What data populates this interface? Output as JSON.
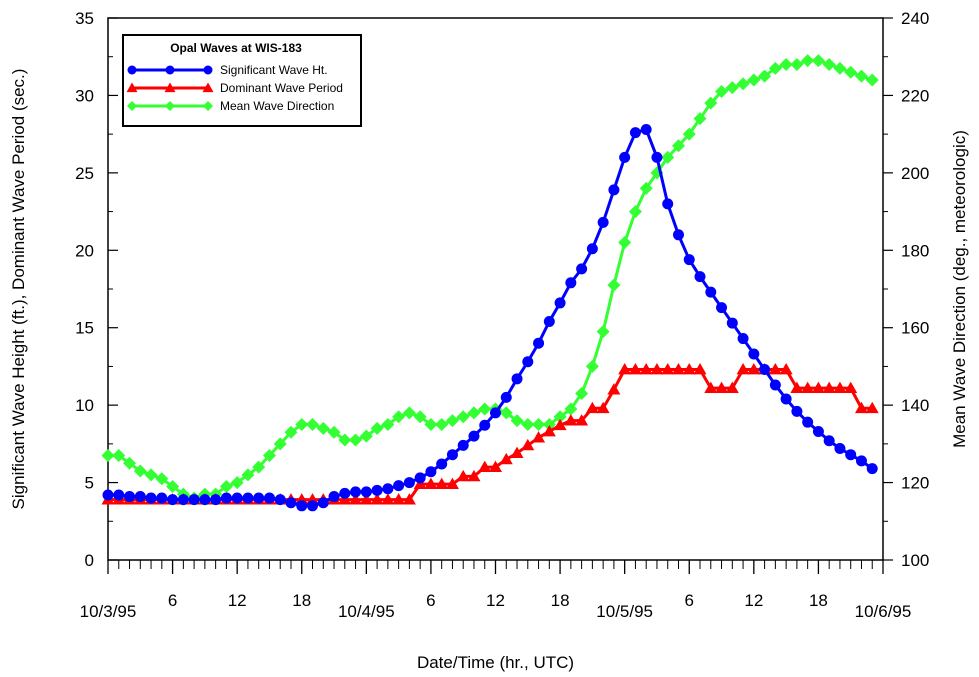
{
  "chart_data": {
    "type": "line",
    "title": "Opal Waves at WIS-183",
    "xlabel": "Date/Time (hr., UTC)",
    "ylabel_left": "Significant Wave Height (ft.), Dominant Wave Period (sec.)",
    "ylabel_right": "Mean Wave Direction (deg., meteorologic)",
    "x_unit": "hours since 10/3/95 00 UTC",
    "xlim": [
      0,
      72
    ],
    "ylim_left": [
      0,
      35
    ],
    "ylim_right": [
      100,
      240
    ],
    "y_ticks_left": [
      "0",
      "5",
      "10",
      "15",
      "20",
      "25",
      "30",
      "35"
    ],
    "y_ticks_right": [
      "100",
      "120",
      "140",
      "160",
      "180",
      "200",
      "220",
      "240"
    ],
    "x_hour_labels": [
      {
        "x": 6,
        "label": "6"
      },
      {
        "x": 12,
        "label": "12"
      },
      {
        "x": 18,
        "label": "18"
      },
      {
        "x": 30,
        "label": "6"
      },
      {
        "x": 36,
        "label": "12"
      },
      {
        "x": 42,
        "label": "18"
      },
      {
        "x": 54,
        "label": "6"
      },
      {
        "x": 60,
        "label": "12"
      },
      {
        "x": 66,
        "label": "18"
      }
    ],
    "x_date_labels": [
      {
        "x": 0,
        "label": "10/3/95"
      },
      {
        "x": 24,
        "label": "10/4/95"
      },
      {
        "x": 48,
        "label": "10/5/95"
      },
      {
        "x": 72,
        "label": "10/6/95"
      }
    ],
    "legend_position": "top-left",
    "grid": false,
    "series": [
      {
        "name": "Significant Wave Ht.",
        "axis": "left",
        "color": "#0000ff",
        "marker": "circle",
        "x": [
          0,
          1,
          2,
          3,
          4,
          5,
          6,
          7,
          8,
          9,
          10,
          11,
          12,
          13,
          14,
          15,
          16,
          17,
          18,
          19,
          20,
          21,
          22,
          23,
          24,
          25,
          26,
          27,
          28,
          29,
          30,
          31,
          32,
          33,
          34,
          35,
          36,
          37,
          38,
          39,
          40,
          41,
          42,
          43,
          44,
          45,
          46,
          47,
          48,
          49,
          50,
          51,
          52,
          53,
          54,
          55,
          56,
          57,
          58,
          59,
          60,
          61,
          62,
          63,
          64,
          65,
          66,
          67,
          68,
          69,
          70,
          71
        ],
        "values": [
          4.2,
          4.2,
          4.1,
          4.1,
          4.0,
          4.0,
          3.9,
          3.9,
          3.9,
          3.9,
          3.9,
          4.0,
          4.0,
          4.0,
          4.0,
          4.0,
          3.9,
          3.7,
          3.5,
          3.5,
          3.7,
          4.1,
          4.3,
          4.4,
          4.4,
          4.5,
          4.6,
          4.8,
          5.0,
          5.3,
          5.7,
          6.2,
          6.8,
          7.4,
          8.0,
          8.7,
          9.5,
          10.5,
          11.7,
          12.8,
          14.0,
          15.4,
          16.6,
          17.9,
          18.8,
          20.1,
          21.8,
          23.9,
          26.0,
          27.6,
          27.8,
          26.0,
          23.0,
          21.0,
          19.4,
          18.3,
          17.3,
          16.3,
          15.3,
          14.3,
          13.3,
          12.3,
          11.3,
          10.4,
          9.6,
          8.9,
          8.3,
          7.7,
          7.2,
          6.8,
          6.4,
          5.9
        ]
      },
      {
        "name": "Dominant Wave Period",
        "axis": "left",
        "color": "#ff0000",
        "marker": "triangle",
        "x": [
          0,
          1,
          2,
          3,
          4,
          5,
          6,
          7,
          8,
          9,
          10,
          11,
          12,
          13,
          14,
          15,
          16,
          17,
          18,
          19,
          20,
          21,
          22,
          23,
          24,
          25,
          26,
          27,
          28,
          29,
          30,
          31,
          32,
          33,
          34,
          35,
          36,
          37,
          38,
          39,
          40,
          41,
          42,
          43,
          44,
          45,
          46,
          47,
          48,
          49,
          50,
          51,
          52,
          53,
          54,
          55,
          56,
          57,
          58,
          59,
          60,
          61,
          62,
          63,
          64,
          65,
          66,
          67,
          68,
          69,
          70,
          71
        ],
        "values": [
          3.9,
          3.9,
          3.9,
          3.9,
          3.9,
          3.9,
          3.9,
          3.9,
          3.9,
          3.9,
          3.9,
          3.9,
          3.9,
          3.9,
          3.9,
          3.9,
          3.9,
          3.9,
          3.9,
          3.9,
          3.9,
          3.9,
          3.9,
          3.9,
          3.9,
          3.9,
          3.9,
          3.9,
          3.9,
          4.9,
          4.9,
          4.9,
          4.9,
          5.4,
          5.4,
          6.0,
          6.0,
          6.5,
          6.9,
          7.4,
          7.9,
          8.3,
          8.7,
          9.0,
          9.0,
          9.8,
          9.8,
          11.0,
          12.3,
          12.3,
          12.3,
          12.3,
          12.3,
          12.3,
          12.3,
          12.3,
          11.1,
          11.1,
          11.1,
          12.3,
          12.3,
          12.3,
          12.3,
          12.3,
          11.1,
          11.1,
          11.1,
          11.1,
          11.1,
          11.1,
          9.8,
          9.8
        ]
      },
      {
        "name": "Mean Wave Direction",
        "axis": "right",
        "color": "#33ff33",
        "marker": "diamond",
        "x": [
          0,
          1,
          2,
          3,
          4,
          5,
          6,
          7,
          8,
          9,
          10,
          11,
          12,
          13,
          14,
          15,
          16,
          17,
          18,
          19,
          20,
          21,
          22,
          23,
          24,
          25,
          26,
          27,
          28,
          29,
          30,
          31,
          32,
          33,
          34,
          35,
          36,
          37,
          38,
          39,
          40,
          41,
          42,
          43,
          44,
          45,
          46,
          47,
          48,
          49,
          50,
          51,
          52,
          53,
          54,
          55,
          56,
          57,
          58,
          59,
          60,
          61,
          62,
          63,
          64,
          65,
          66,
          67,
          68,
          69,
          70,
          71
        ],
        "values": [
          127,
          127,
          125,
          123,
          122,
          121,
          119,
          117,
          116,
          117,
          117,
          119,
          120,
          122,
          124,
          127,
          130,
          133,
          135,
          135,
          134,
          133,
          131,
          131,
          132,
          134,
          135,
          137,
          138,
          137,
          135,
          135,
          136,
          137,
          138,
          139,
          139,
          138,
          136,
          135,
          135,
          135,
          137,
          139,
          143,
          150,
          159,
          171,
          182,
          190,
          196,
          200,
          204,
          207,
          210,
          214,
          218,
          221,
          222,
          223,
          224,
          225,
          227,
          228,
          228,
          229,
          229,
          228,
          227,
          226,
          225,
          224
        ]
      }
    ]
  }
}
